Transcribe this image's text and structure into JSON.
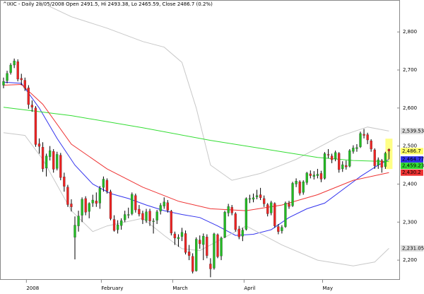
{
  "chart_data": {
    "type": "candlestick",
    "title": "^IXIC - Daily 28/05/2008 Open 2491.5, Hi 2493.38, Lo 2465.59, Close 2486.7 (0.2%)",
    "categories": [
      null,
      null,
      null,
      null,
      null,
      null,
      null,
      "2008",
      null,
      null,
      null,
      null,
      null,
      null,
      null,
      null,
      null,
      null,
      null,
      null,
      null,
      null,
      null,
      null,
      null,
      null,
      null,
      null,
      "February",
      null,
      null,
      null,
      null,
      null,
      null,
      null,
      null,
      null,
      null,
      null,
      null,
      null,
      null,
      null,
      null,
      null,
      null,
      null,
      "March",
      null,
      null,
      null,
      null,
      null,
      null,
      null,
      null,
      null,
      null,
      null,
      null,
      null,
      null,
      null,
      null,
      null,
      null,
      null,
      "April",
      null,
      null,
      null,
      null,
      null,
      null,
      null,
      null,
      null,
      null,
      null,
      null,
      null,
      null,
      null,
      null,
      null,
      null,
      null,
      null,
      null,
      "May",
      null,
      null,
      null,
      null,
      null,
      null,
      null,
      null,
      null,
      null,
      null,
      null,
      null,
      null,
      null,
      null,
      null,
      null
    ],
    "open": [
      2660,
      2672,
      2693,
      2713,
      2722,
      2678,
      2673,
      2653,
      2608,
      2600,
      2506,
      2497,
      2442,
      2472,
      2486,
      2441,
      2476,
      2419,
      2392,
      2348,
      2260,
      2290,
      2318,
      2362,
      2328,
      2350,
      2356,
      2350,
      2391,
      2410,
      2380,
      2307,
      2280,
      2291,
      2306,
      2318,
      2322,
      2370,
      2334,
      2323,
      2304,
      2329,
      2301,
      2305,
      2329,
      2342,
      2351,
      2329,
      2269,
      2256,
      2262,
      2270,
      2222,
      2210,
      2172,
      2253,
      2241,
      2261,
      2190,
      2179,
      2267,
      2211,
      2260,
      2324,
      2339,
      2322,
      2282,
      2263,
      2281,
      2360,
      2360,
      2366,
      2372,
      2362,
      2346,
      2324,
      2349,
      2288,
      2277,
      2288,
      2348,
      2343,
      2400,
      2406,
      2378,
      2404,
      2427,
      2420,
      2422,
      2428,
      2415,
      2478,
      2474,
      2466,
      2481,
      2440,
      2449,
      2447,
      2486,
      2493,
      2498,
      2531,
      2530,
      2514,
      2490,
      2450,
      2462,
      2446,
      2491.5
    ],
    "high": [
      2680,
      2698,
      2718,
      2730,
      2728,
      2690,
      2680,
      2660,
      2620,
      2605,
      2520,
      2510,
      2480,
      2500,
      2492,
      2485,
      2482,
      2430,
      2398,
      2360,
      2315,
      2330,
      2365,
      2368,
      2352,
      2372,
      2378,
      2395,
      2420,
      2415,
      2385,
      2318,
      2305,
      2310,
      2330,
      2338,
      2378,
      2375,
      2345,
      2330,
      2335,
      2335,
      2310,
      2332,
      2350,
      2365,
      2358,
      2332,
      2275,
      2268,
      2285,
      2278,
      2240,
      2218,
      2260,
      2265,
      2270,
      2268,
      2205,
      2272,
      2270,
      2262,
      2330,
      2348,
      2345,
      2326,
      2290,
      2285,
      2365,
      2372,
      2375,
      2385,
      2390,
      2370,
      2350,
      2356,
      2352,
      2295,
      2292,
      2354,
      2356,
      2406,
      2415,
      2410,
      2410,
      2432,
      2436,
      2434,
      2440,
      2435,
      2484,
      2492,
      2480,
      2488,
      2484,
      2460,
      2462,
      2492,
      2502,
      2505,
      2538,
      2545,
      2535,
      2518,
      2494,
      2470,
      2466,
      2485,
      2493.38
    ],
    "low": [
      2652,
      2665,
      2688,
      2705,
      2670,
      2660,
      2645,
      2598,
      2590,
      2498,
      2480,
      2432,
      2420,
      2462,
      2430,
      2436,
      2410,
      2380,
      2340,
      2328,
      2202,
      2275,
      2300,
      2318,
      2310,
      2340,
      2340,
      2335,
      2380,
      2375,
      2305,
      2275,
      2270,
      2280,
      2300,
      2310,
      2318,
      2325,
      2315,
      2295,
      2298,
      2290,
      2270,
      2295,
      2320,
      2335,
      2325,
      2265,
      2240,
      2235,
      2250,
      2215,
      2200,
      2165,
      2170,
      2230,
      2200,
      2205,
      2155,
      2175,
      2205,
      2200,
      2258,
      2315,
      2318,
      2275,
      2255,
      2250,
      2278,
      2350,
      2352,
      2360,
      2358,
      2340,
      2315,
      2318,
      2285,
      2268,
      2270,
      2285,
      2335,
      2340,
      2392,
      2370,
      2372,
      2398,
      2415,
      2412,
      2415,
      2405,
      2412,
      2468,
      2455,
      2460,
      2430,
      2432,
      2438,
      2444,
      2480,
      2485,
      2495,
      2520,
      2505,
      2485,
      2440,
      2440,
      2430,
      2440,
      2465.59
    ],
    "close": [
      2670,
      2691,
      2713,
      2724,
      2676,
      2674,
      2652,
      2609,
      2602,
      2504,
      2499,
      2440,
      2474,
      2488,
      2439,
      2478,
      2417,
      2394,
      2346,
      2340,
      2292,
      2316,
      2360,
      2326,
      2349,
      2358,
      2349,
      2389,
      2413,
      2382,
      2309,
      2278,
      2293,
      2304,
      2320,
      2320,
      2373,
      2332,
      2321,
      2306,
      2327,
      2303,
      2303,
      2327,
      2344,
      2353,
      2331,
      2271,
      2258,
      2260,
      2273,
      2220,
      2212,
      2170,
      2255,
      2243,
      2263,
      2212,
      2177,
      2269,
      2209,
      2258,
      2326,
      2341,
      2324,
      2280,
      2261,
      2279,
      2362,
      2362,
      2364,
      2370,
      2364,
      2348,
      2322,
      2351,
      2290,
      2275,
      2286,
      2350,
      2341,
      2402,
      2408,
      2376,
      2406,
      2429,
      2422,
      2424,
      2426,
      2413,
      2480,
      2476,
      2464,
      2483,
      2438,
      2451,
      2445,
      2488,
      2495,
      2496,
      2533,
      2528,
      2516,
      2492,
      2448,
      2464,
      2444,
      2481,
      2486.7
    ],
    "up_color": "#22bb22",
    "down_color": "#ee2222",
    "wick_color": "#000000",
    "close_label": "2,486.7",
    "close_label_color": "#ffff66",
    "overlays": [
      {
        "color": "#c8c8c8",
        "label_color": "#dddddd",
        "last_label": "2,539.53",
        "x": [
          10,
          19,
          29,
          39,
          45,
          50,
          54,
          58,
          64,
          72,
          82,
          94,
          102,
          108
        ],
        "values": [
          2880,
          2840,
          2810,
          2775,
          2760,
          2720,
          2600,
          2450,
          2410,
          2428,
          2465,
          2525,
          2550,
          2539.53
        ]
      },
      {
        "color": "#3333ee",
        "label_color": "#3333ee",
        "last_label": "2,464.77",
        "x": [
          0,
          5,
          10,
          15,
          20,
          25,
          30,
          35,
          40,
          45,
          50,
          55,
          60,
          65,
          70,
          75,
          80,
          85,
          90,
          95,
          100,
          105,
          108
        ],
        "values": [
          2668,
          2665,
          2600,
          2520,
          2450,
          2400,
          2375,
          2362,
          2345,
          2330,
          2320,
          2312,
          2290,
          2265,
          2268,
          2280,
          2312,
          2335,
          2350,
          2385,
          2420,
          2450,
          2464.77
        ]
      },
      {
        "color": "#33dd33",
        "label_color": "#33dd33",
        "last_label": "2,459.23",
        "x": [
          0,
          19,
          39,
          58,
          78,
          88,
          98,
          108
        ],
        "values": [
          2602,
          2580,
          2548,
          2515,
          2485,
          2470,
          2462,
          2459.23
        ]
      },
      {
        "color": "#ee3333",
        "label_color": "#ee3333",
        "last_label": "2,430.2",
        "x": [
          0,
          5,
          11,
          19,
          29,
          39,
          49,
          58,
          68,
          78,
          88,
          98,
          108
        ],
        "values": [
          2660,
          2662,
          2610,
          2505,
          2440,
          2392,
          2355,
          2335,
          2330,
          2345,
          2372,
          2410,
          2430.2
        ]
      },
      {
        "color": "#c8c8c8",
        "label_color": "#dddddd",
        "last_label": "2,231.05",
        "x": [
          0,
          6,
          11,
          19,
          25,
          29,
          39,
          45,
          50,
          55,
          60,
          68,
          78,
          88,
          98,
          104,
          108
        ],
        "values": [
          2535,
          2528,
          2465,
          2330,
          2275,
          2290,
          2310,
          2265,
          2230,
          2225,
          2250,
          2290,
          2240,
          2200,
          2185,
          2195,
          2231.05
        ]
      }
    ],
    "ylim": [
      2150,
      2884
    ],
    "yticks": [
      {
        "value": 2200,
        "label": "2,200"
      },
      {
        "value": 2300,
        "label": "2,300"
      },
      {
        "value": 2400,
        "label": "2,400"
      },
      {
        "value": 2500,
        "label": "2,500"
      },
      {
        "value": 2600,
        "label": "2,600"
      },
      {
        "value": 2700,
        "label": "2,700"
      },
      {
        "value": 2800,
        "label": "2,800"
      }
    ]
  }
}
